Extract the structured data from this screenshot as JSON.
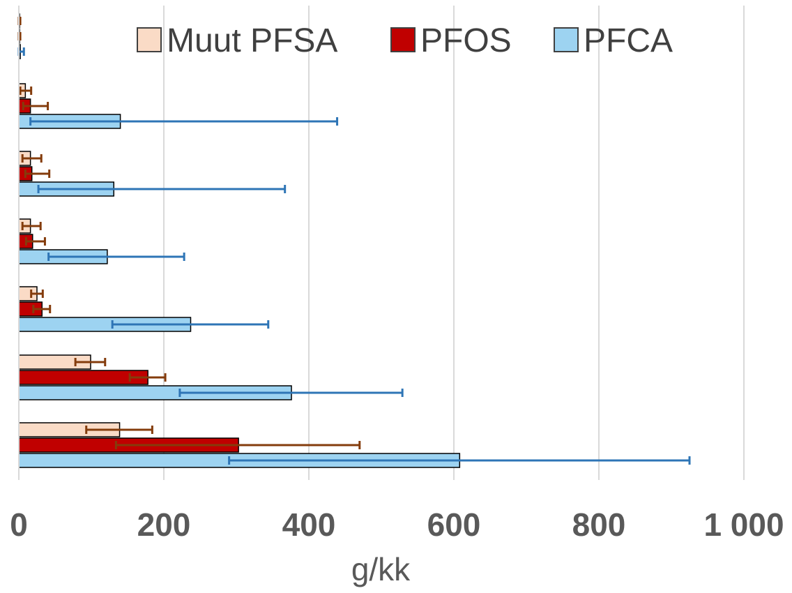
{
  "chart_data": {
    "type": "bar",
    "orientation": "horizontal",
    "title": "",
    "xlabel": "g/kk",
    "ylabel": "",
    "xlim": [
      0,
      1000
    ],
    "xticks": [
      0,
      200,
      400,
      600,
      800,
      1000
    ],
    "xtick_labels": [
      "0",
      "200",
      "400",
      "600",
      "800",
      "1 000"
    ],
    "grid": "vertical",
    "legend_position": "top",
    "category_count": 7,
    "series": [
      {
        "name": "Muut PFSA",
        "color": "#FADBC6",
        "error_color": "#843C0C",
        "values": [
          1,
          9,
          16,
          16,
          25,
          99,
          139
        ],
        "error_low": [
          0,
          2,
          5,
          5,
          17,
          78,
          93
        ],
        "error_high": [
          2,
          17,
          31,
          30,
          33,
          119,
          184
        ]
      },
      {
        "name": "PFOS",
        "color": "#C00000",
        "error_color": "#843C0C",
        "values": [
          1,
          16,
          18,
          19,
          32,
          178,
          303
        ],
        "error_low": [
          0,
          6,
          9,
          10,
          20,
          153,
          134
        ],
        "error_high": [
          2,
          40,
          42,
          36,
          43,
          202,
          470
        ]
      },
      {
        "name": "PFCA",
        "color": "#9DD3F1",
        "error_color": "#2E75B6",
        "values": [
          2,
          140,
          131,
          122,
          237,
          376,
          608
        ],
        "error_low": [
          0,
          16,
          27,
          41,
          129,
          222,
          290
        ],
        "error_high": [
          7,
          439,
          367,
          228,
          344,
          529,
          925
        ]
      }
    ]
  }
}
